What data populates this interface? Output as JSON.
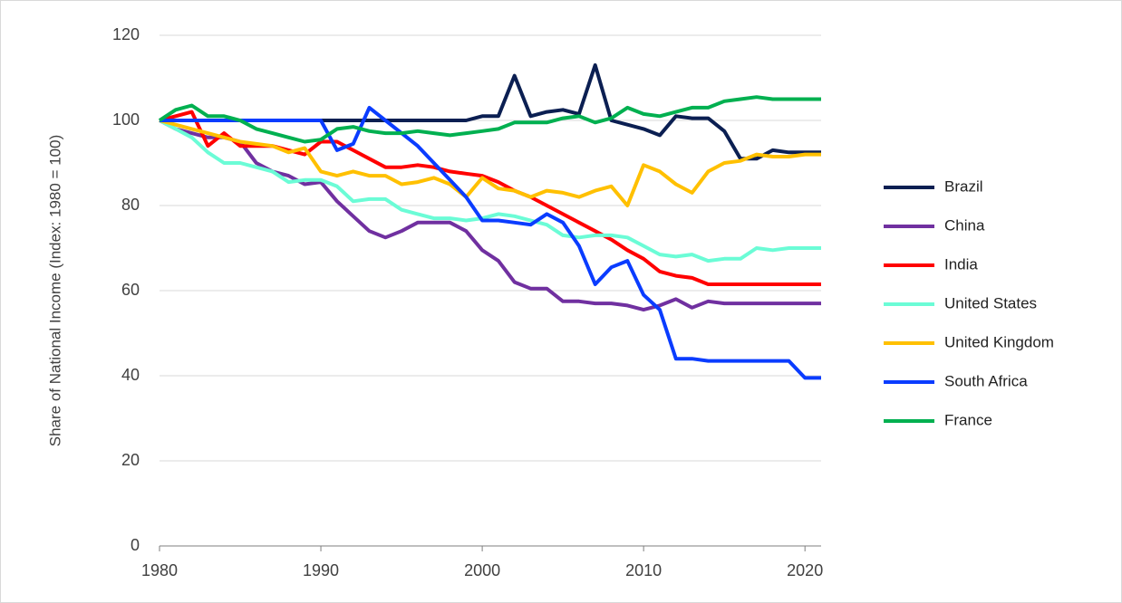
{
  "chart_data": {
    "type": "line",
    "y_label": "Share of National Income (Index: 1980 = 100)",
    "x": [
      1980,
      1981,
      1982,
      1983,
      1984,
      1985,
      1986,
      1987,
      1988,
      1989,
      1990,
      1991,
      1992,
      1993,
      1994,
      1995,
      1996,
      1997,
      1998,
      1999,
      2000,
      2001,
      2002,
      2003,
      2004,
      2005,
      2006,
      2007,
      2008,
      2009,
      2010,
      2011,
      2012,
      2013,
      2014,
      2015,
      2016,
      2017,
      2018,
      2019,
      2020,
      2021
    ],
    "series": [
      {
        "name": "Brazil",
        "color": "#0b1f52",
        "values": [
          100,
          100,
          100,
          100,
          100,
          100,
          100,
          100,
          100,
          100,
          100,
          100,
          100,
          100,
          100,
          100,
          100,
          100,
          100,
          100,
          101,
          101,
          110.5,
          101,
          102,
          102.5,
          101.5,
          113,
          100,
          99,
          98,
          96.5,
          101,
          100.5,
          100.5,
          97.5,
          91,
          91,
          93,
          92.5,
          92.5,
          92.5
        ]
      },
      {
        "name": "China",
        "color": "#7030a0",
        "values": [
          100,
          98,
          97,
          96,
          96,
          95,
          90,
          88,
          87,
          85,
          85.5,
          81,
          77.5,
          74,
          72.5,
          74,
          76,
          76,
          76,
          74,
          69.5,
          67,
          62,
          60.5,
          60.5,
          57.5,
          57.5,
          57,
          57,
          56.5,
          55.5,
          56.5,
          58,
          56,
          57.5,
          57,
          57,
          57,
          57,
          57,
          57,
          57
        ]
      },
      {
        "name": "India",
        "color": "#ff0000",
        "values": [
          100,
          101,
          102,
          94,
          97,
          94,
          94,
          94,
          93,
          92,
          95,
          95,
          93,
          91,
          89,
          89,
          89.5,
          89,
          88,
          87.5,
          87,
          85.5,
          83.5,
          82,
          80,
          78,
          76,
          74,
          72,
          69.5,
          67.5,
          64.5,
          63.5,
          63,
          61.5,
          61.5,
          61.5,
          61.5,
          61.5,
          61.5,
          61.5,
          61.5
        ]
      },
      {
        "name": "United States",
        "color": "#6bfcd6",
        "values": [
          100,
          98,
          96,
          92.5,
          90,
          90,
          89,
          88,
          85.5,
          86,
          86,
          84.5,
          81,
          81.5,
          81.5,
          79,
          78,
          77,
          77,
          76.5,
          77,
          78,
          77.5,
          76.5,
          75.5,
          73,
          72.5,
          73,
          73,
          72.5,
          70.5,
          68.5,
          68,
          68.5,
          67,
          67.5,
          67.5,
          70,
          69.5,
          70,
          70,
          70
        ]
      },
      {
        "name": "United Kingdom",
        "color": "#ffc000",
        "values": [
          100,
          99,
          98,
          97,
          96,
          95,
          94.5,
          94,
          92.5,
          93.5,
          88,
          87,
          88,
          87,
          87,
          85,
          85.5,
          86.5,
          85,
          82,
          86.5,
          84,
          83.5,
          82,
          83.5,
          83,
          82,
          83.5,
          84.5,
          80,
          89.5,
          88,
          85,
          83,
          88,
          90,
          90.5,
          92,
          91.5,
          91.5,
          92,
          92
        ]
      },
      {
        "name": "South Africa",
        "color": "#0a3cff",
        "values": [
          100,
          100,
          100,
          100,
          100,
          100,
          100,
          100,
          100,
          100,
          100,
          93,
          94.5,
          103,
          100,
          97,
          94,
          90,
          86,
          82,
          76.5,
          76.5,
          76,
          75.5,
          78,
          76,
          70.5,
          61.5,
          65.5,
          67,
          59,
          55.5,
          44,
          44,
          43.5,
          43.5,
          43.5,
          43.5,
          43.5,
          43.5,
          39.5,
          39.5
        ]
      },
      {
        "name": "France",
        "color": "#00b050",
        "values": [
          100,
          102.5,
          103.5,
          101,
          101,
          100,
          98,
          97,
          96,
          95,
          95.5,
          98,
          98.5,
          97.5,
          97,
          97,
          97.5,
          97,
          96.5,
          97,
          97.5,
          98,
          99.5,
          99.5,
          99.5,
          100.5,
          101,
          99.5,
          100.5,
          103,
          101.5,
          101,
          102,
          103,
          103,
          104.5,
          105,
          105.5,
          105,
          105,
          105,
          105
        ]
      }
    ],
    "xlim": [
      1980,
      2021
    ],
    "xticks": [
      1980,
      1990,
      2000,
      2010,
      2020
    ],
    "ylim": [
      0,
      120
    ],
    "yticks": [
      0,
      20,
      40,
      60,
      80,
      100,
      120
    ],
    "grid": true,
    "legend": "right"
  }
}
